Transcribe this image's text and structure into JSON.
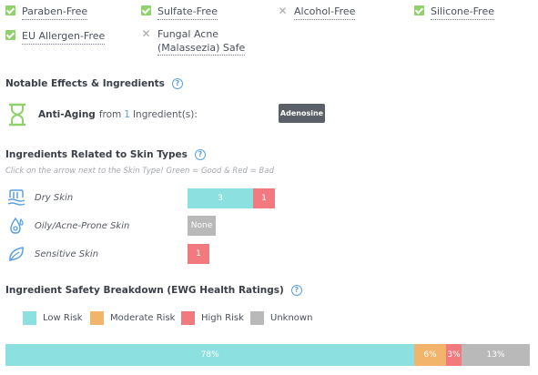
{
  "free_from": [
    {
      "label": "Paraben-Free",
      "status": "check"
    },
    {
      "label": "Sulfate-Free",
      "status": "check"
    },
    {
      "label": "Alcohol-Free",
      "status": "cross"
    },
    {
      "label": "Silicone-Free",
      "status": "check"
    },
    {
      "label": "EU Allergen-Free",
      "status": "check"
    },
    {
      "label_line1": "Fungal Acne",
      "label_line2": "(Malassezia) Safe",
      "status": "cross"
    }
  ],
  "notable": {
    "title": "Notable Effects & Ingredients",
    "help": "?",
    "effect": {
      "icon": "hourglass-icon",
      "name": "Anti-Aging",
      "from_text": "from",
      "count": "1",
      "suffix": "Ingredient(s):",
      "ingredient": "Adenosine"
    }
  },
  "skin_types": {
    "title": "Ingredients Related to Skin Types",
    "help": "?",
    "hint": "Click on the arrow next to the Skin Type! Green = Good & Red = Bad",
    "rows": [
      {
        "label": "Dry Skin",
        "icon": "dry-skin-icon",
        "good": "3",
        "bad": "1"
      },
      {
        "label": "Oily/Acne-Prone Skin",
        "icon": "oily-skin-icon",
        "none": "None"
      },
      {
        "label": "Sensitive Skin",
        "icon": "sensitive-skin-icon",
        "bad": "1"
      }
    ]
  },
  "ewg": {
    "title": "Ingredient Safety Breakdown (EWG Health Ratings)",
    "help": "?",
    "legend": [
      {
        "label": "Low Risk",
        "color": "#8de0e0"
      },
      {
        "label": "Moderate Risk",
        "color": "#f2b36b"
      },
      {
        "label": "High Risk",
        "color": "#f27a7e"
      },
      {
        "label": "Unknown",
        "color": "#b9b9b9"
      }
    ],
    "segments": [
      {
        "label": "78%",
        "value": 78,
        "color": "#8de0e0"
      },
      {
        "label": "6%",
        "value": 6,
        "color": "#f2b36b"
      },
      {
        "label": "3%",
        "value": 3,
        "color": "#f27a7e"
      },
      {
        "label": "13%",
        "value": 13,
        "color": "#b9b9b9"
      }
    ]
  },
  "colors": {
    "good": "#8de0e0",
    "bad": "#f27a7e",
    "none": "#b9b9b9",
    "accent": "#5aa1e0",
    "check": "#8fd16a"
  }
}
